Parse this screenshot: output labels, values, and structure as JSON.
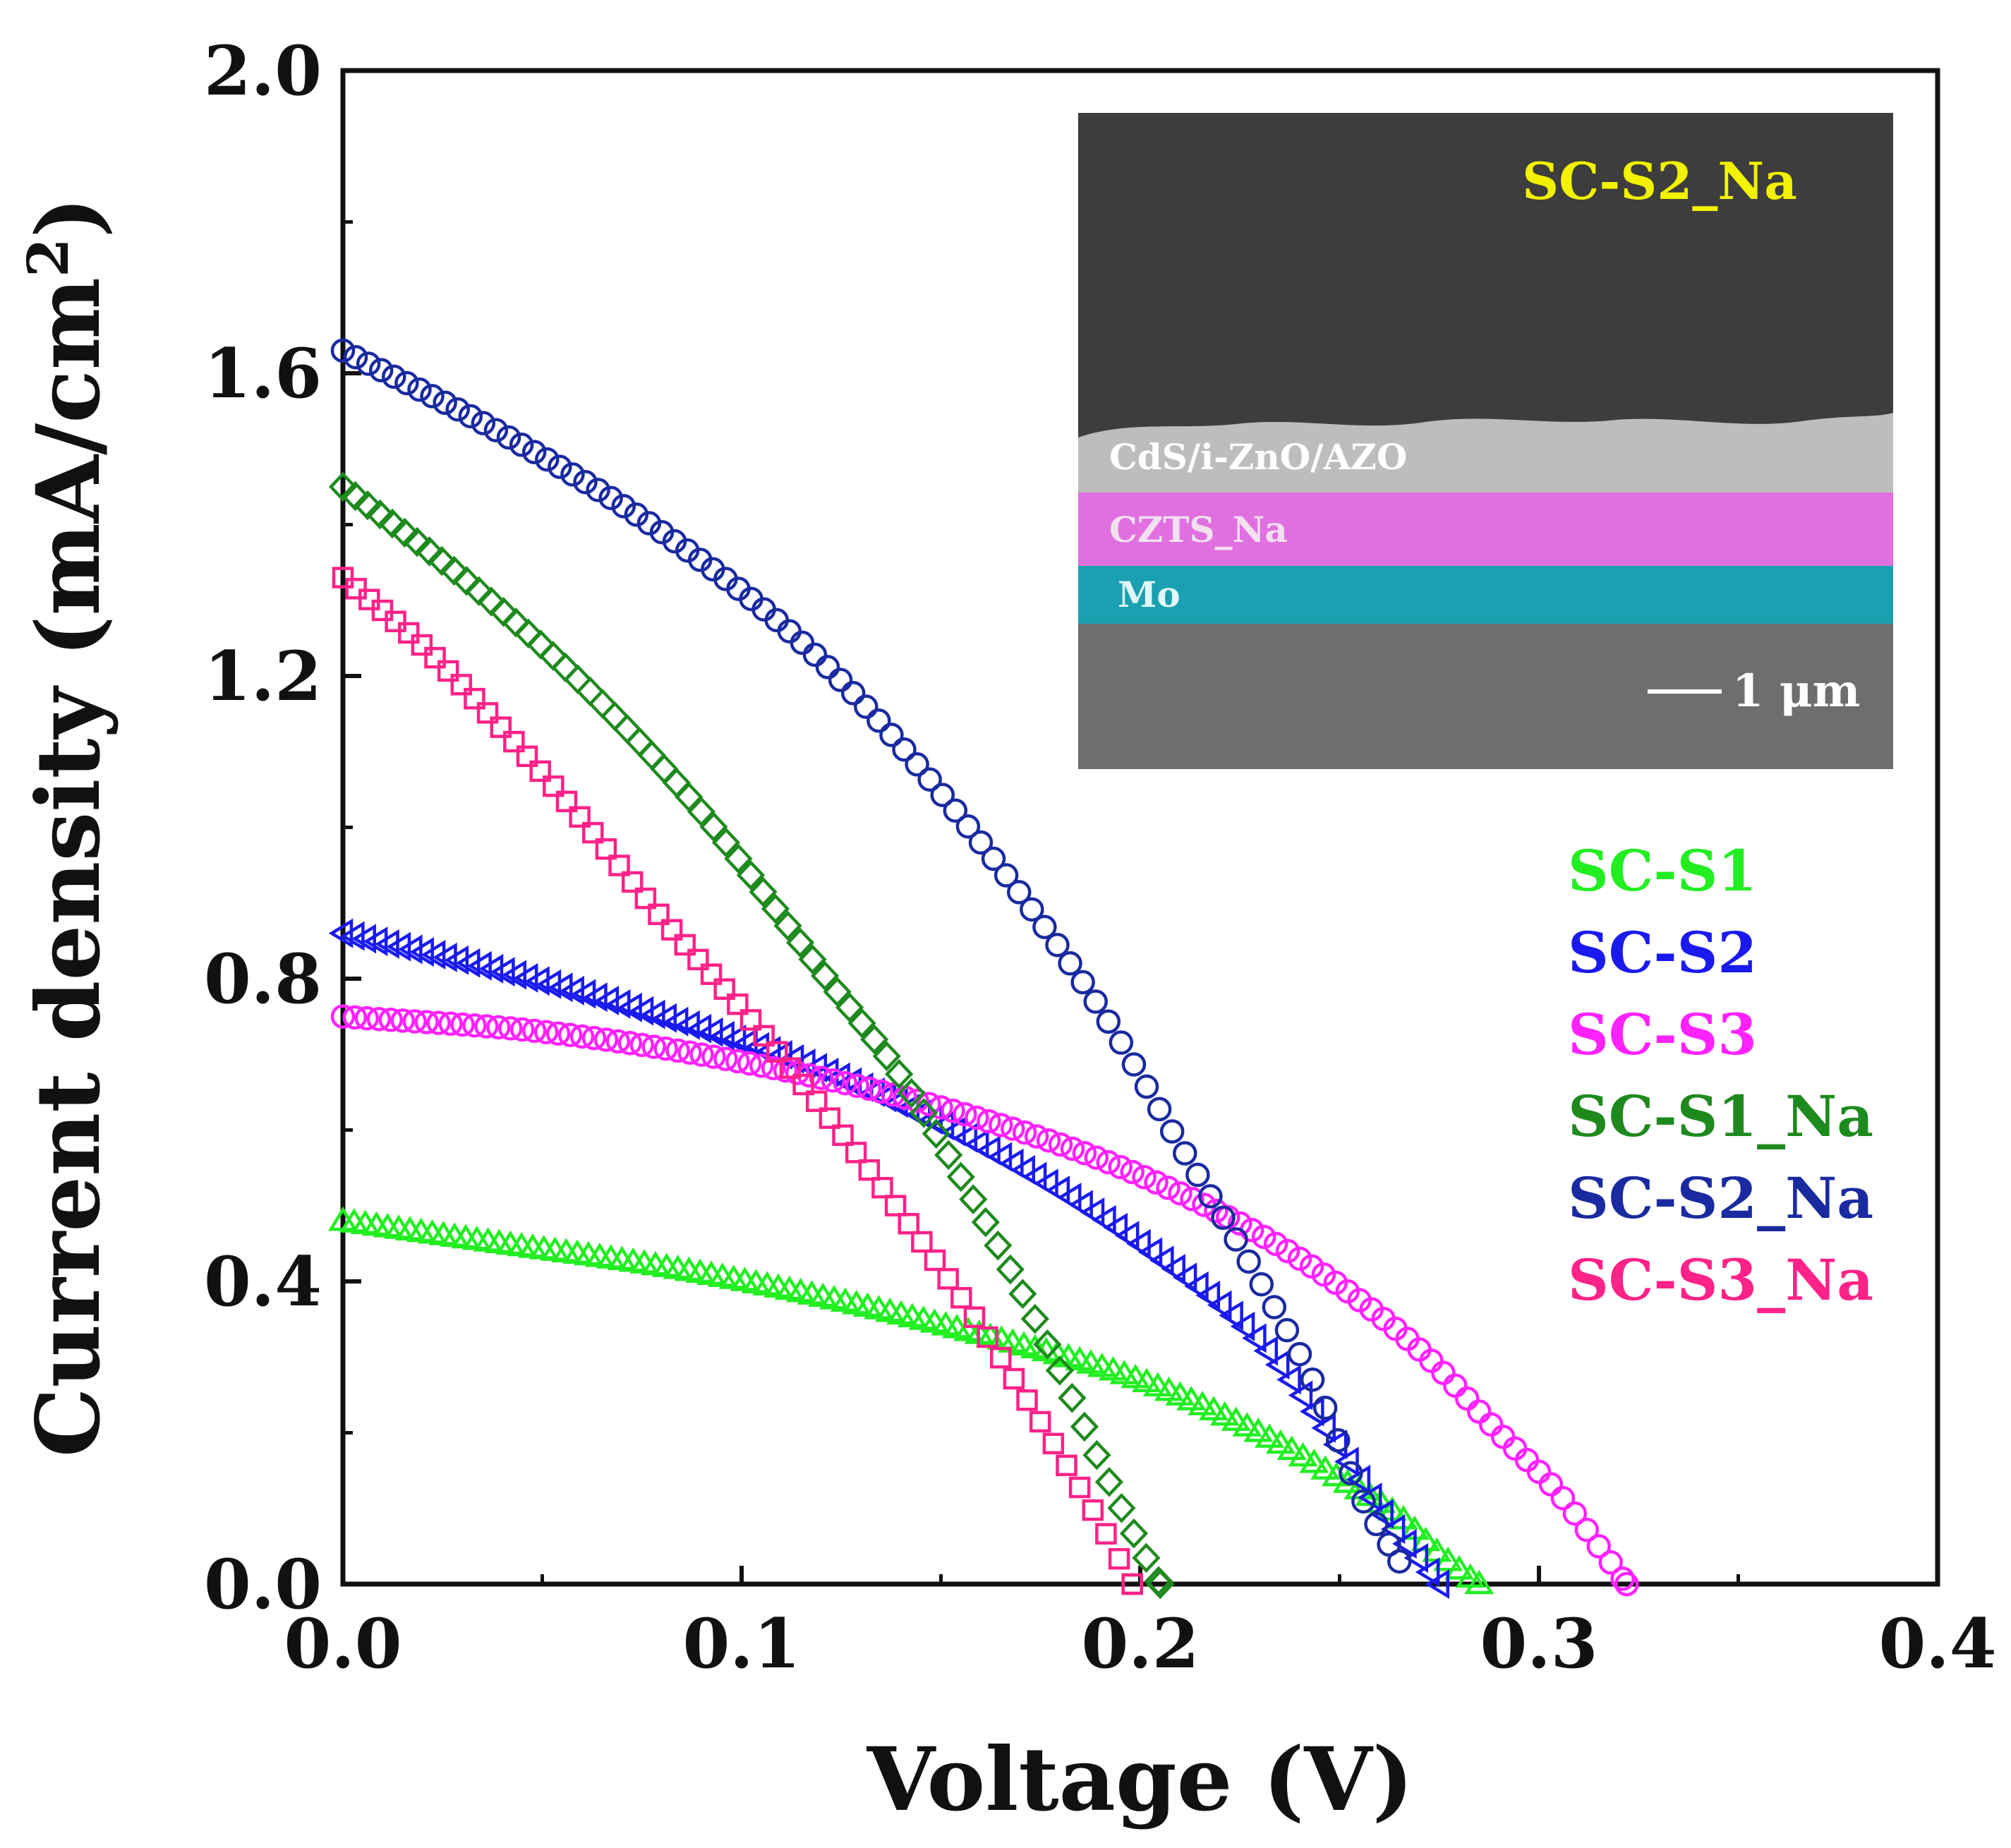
{
  "chart_data": {
    "type": "scatter",
    "xlabel": "Voltage (V)",
    "ylabel": {
      "prefix": "Current density (mA/cm",
      "sup": "2",
      "suffix": ")"
    },
    "xlim": [
      0.0,
      0.4
    ],
    "ylim": [
      0.0,
      2.0
    ],
    "xticks": [
      0.0,
      0.1,
      0.2,
      0.3,
      0.4
    ],
    "xtick_labels": [
      "0.0",
      "0.1",
      "0.2",
      "0.3",
      "0.4"
    ],
    "yticks": [
      0.0,
      0.4,
      0.8,
      1.2,
      1.6,
      2.0
    ],
    "ytick_labels": [
      "0.0",
      "0.4",
      "0.8",
      "1.2",
      "1.6",
      "2.0"
    ],
    "legend_position": "right",
    "series": [
      {
        "name": "SC-S1",
        "color": "#22ee22",
        "marker": "triangle-up",
        "voc": 0.285,
        "x": [
          0.0,
          0.04,
          0.08,
          0.12,
          0.16,
          0.2,
          0.23,
          0.25,
          0.265,
          0.275,
          0.285
        ],
        "y": [
          0.48,
          0.45,
          0.42,
          0.38,
          0.33,
          0.27,
          0.2,
          0.14,
          0.09,
          0.04,
          0.0
        ]
      },
      {
        "name": "SC-S2",
        "color": "#1a1aee",
        "marker": "triangle-left",
        "voc": 0.275,
        "x": [
          0.0,
          0.04,
          0.08,
          0.12,
          0.16,
          0.2,
          0.23,
          0.25,
          0.26,
          0.275
        ],
        "y": [
          0.86,
          0.81,
          0.75,
          0.68,
          0.58,
          0.45,
          0.32,
          0.18,
          0.1,
          0.0
        ]
      },
      {
        "name": "SC-S3",
        "color": "#ff22ff",
        "marker": "circle",
        "voc": 0.322,
        "x": [
          0.0,
          0.05,
          0.1,
          0.15,
          0.2,
          0.24,
          0.27,
          0.29,
          0.305,
          0.315,
          0.322
        ],
        "y": [
          0.75,
          0.73,
          0.69,
          0.63,
          0.54,
          0.43,
          0.31,
          0.2,
          0.12,
          0.05,
          0.0
        ]
      },
      {
        "name": "SC-S1_Na",
        "color": "#1e8a1e",
        "marker": "diamond",
        "voc": 0.205,
        "x": [
          0.0,
          0.03,
          0.06,
          0.09,
          0.12,
          0.14,
          0.16,
          0.18,
          0.19,
          0.2,
          0.205
        ],
        "y": [
          1.45,
          1.33,
          1.19,
          1.02,
          0.81,
          0.67,
          0.49,
          0.28,
          0.16,
          0.05,
          0.0
        ]
      },
      {
        "name": "SC-S2_Na",
        "color": "#1a2aa0",
        "marker": "circle",
        "voc": 0.265,
        "x": [
          0.0,
          0.04,
          0.08,
          0.12,
          0.16,
          0.19,
          0.21,
          0.23,
          0.245,
          0.255,
          0.265
        ],
        "y": [
          1.63,
          1.52,
          1.39,
          1.22,
          0.98,
          0.76,
          0.58,
          0.4,
          0.25,
          0.12,
          0.03
        ]
      },
      {
        "name": "SC-S3_Na",
        "color": "#ff2288",
        "marker": "square",
        "voc": 0.198,
        "x": [
          0.0,
          0.02,
          0.04,
          0.06,
          0.08,
          0.1,
          0.12,
          0.14,
          0.16,
          0.18,
          0.19,
          0.198
        ],
        "y": [
          1.33,
          1.24,
          1.13,
          1.01,
          0.88,
          0.76,
          0.63,
          0.49,
          0.34,
          0.17,
          0.08,
          0.0
        ]
      }
    ]
  },
  "inset": {
    "title": "SC-S2_Na",
    "title_color": "#f2f200",
    "layers": [
      {
        "label": "CdS/i-ZnO/AZO",
        "color": "#bdbdbd"
      },
      {
        "label": "CZTS_Na",
        "color": "#e070e0"
      },
      {
        "label": "Mo",
        "color": "#1aa0b0"
      }
    ],
    "scale_bar": "1 μm",
    "background_color": "#3d3d3d"
  }
}
